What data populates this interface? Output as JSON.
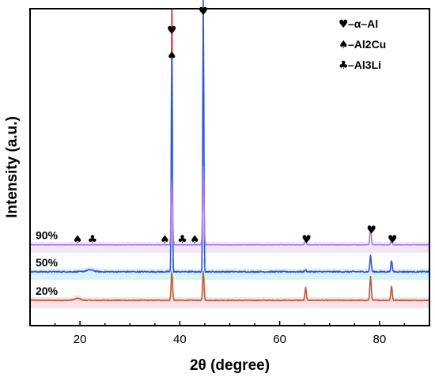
{
  "chart_data": {
    "type": "line",
    "xlabel": "2θ (degree)",
    "ylabel": "Intensity (a.u.)",
    "xlim": [
      10,
      90
    ],
    "x_ticks": [
      20,
      40,
      60,
      80
    ],
    "legend_placement": "top-right",
    "grid": false,
    "legend": [
      {
        "symbol": "♥",
        "label": "–α–Al"
      },
      {
        "symbol": "♠",
        "label": "–Al2Cu"
      },
      {
        "symbol": "♣",
        "label": "–Al3Li"
      }
    ],
    "series": [
      {
        "name": "20%",
        "color": "#b85a3c",
        "fill_color": "#f5c9d8",
        "baseline": 0.08,
        "noise": 0.0025,
        "peaks": [
          {
            "x": 19.5,
            "h": 0.006,
            "w": 0.8
          },
          {
            "x": 38.4,
            "h": 0.09,
            "w": 0.2
          },
          {
            "x": 44.7,
            "h": 0.09,
            "w": 0.2
          },
          {
            "x": 65.2,
            "h": 0.04,
            "w": 0.2
          },
          {
            "x": 78.2,
            "h": 0.075,
            "w": 0.2
          },
          {
            "x": 82.4,
            "h": 0.045,
            "w": 0.2
          }
        ]
      },
      {
        "name": "50%",
        "color": "#3355cc",
        "fill_color": "#b7e8f5",
        "baseline": 0.17,
        "noise": 0.004,
        "peaks": [
          {
            "x": 22.0,
            "h": 0.006,
            "w": 1.0
          },
          {
            "x": 38.4,
            "h": 0.78,
            "w": 0.15
          },
          {
            "x": 44.7,
            "h": 0.86,
            "w": 0.15
          },
          {
            "x": 65.2,
            "h": 0.006,
            "w": 0.2
          },
          {
            "x": 78.2,
            "h": 0.05,
            "w": 0.2
          },
          {
            "x": 82.4,
            "h": 0.035,
            "w": 0.2
          }
        ]
      },
      {
        "name": "90%",
        "color": "#a77ddb",
        "fill_color": "#e4d2f3",
        "baseline": 0.255,
        "noise": 0.0015,
        "peaks": [
          {
            "x": 38.4,
            "h": 0.205,
            "w": 0.2
          },
          {
            "x": 44.7,
            "h": 0.245,
            "w": 0.2
          },
          {
            "x": 65.2,
            "h": 0.015,
            "w": 0.2
          },
          {
            "x": 78.2,
            "h": 0.055,
            "w": 0.2
          },
          {
            "x": 82.4,
            "h": 0.015,
            "w": 0.2
          }
        ]
      },
      {
        "name": "",
        "color": "#e0404a",
        "baseline": 0.17,
        "noise": 0,
        "peaks": [
          {
            "x": 38.4,
            "h": 0.84,
            "w": 0.12
          }
        ]
      }
    ],
    "peak_markers": [
      {
        "x": 19.5,
        "y": 0.26,
        "symbol": "♠"
      },
      {
        "x": 22.5,
        "y": 0.26,
        "symbol": "♣"
      },
      {
        "x": 37.0,
        "y": 0.26,
        "symbol": "♠"
      },
      {
        "x": 40.5,
        "y": 0.26,
        "symbol": "♣"
      },
      {
        "x": 43.0,
        "y": 0.26,
        "symbol": "♠"
      },
      {
        "x": 38.4,
        "y": 0.92,
        "symbol": "♥"
      },
      {
        "x": 38.4,
        "y": 0.84,
        "symbol": "♠"
      },
      {
        "x": 44.7,
        "y": 0.98,
        "symbol": "♥"
      },
      {
        "x": 65.4,
        "y": 0.26,
        "symbol": "♥"
      },
      {
        "x": 78.4,
        "y": 0.29,
        "symbol": "♥"
      },
      {
        "x": 82.6,
        "y": 0.26,
        "symbol": "♥"
      }
    ]
  }
}
